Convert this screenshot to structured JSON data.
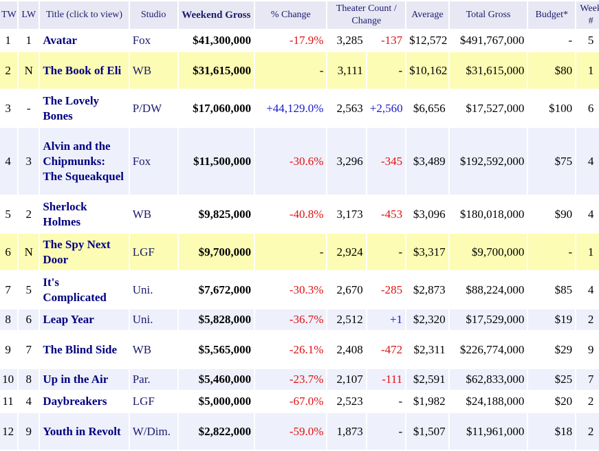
{
  "headers": {
    "tw": "TW",
    "lw": "LW",
    "title": "Title (click to view)",
    "studio": "Studio",
    "weekend": "Weekend Gross",
    "pct": "% Change",
    "theater": "Theater Count / Change",
    "average": "Average",
    "total": "Total Gross",
    "budget": "Budget*",
    "week": "Week #"
  },
  "rows": [
    {
      "tw": "1",
      "lw": "1",
      "title": "Avatar",
      "studio": "Fox",
      "weekend": "$41,300,000",
      "pct": "-17.9%",
      "pct_class": "neg",
      "theaters": "3,285",
      "theater_change": "-137",
      "tc_class": "neg",
      "average": "$12,572",
      "total": "$491,767,000",
      "budget": "-",
      "week": "5",
      "style": "plain"
    },
    {
      "tw": "2",
      "lw": "N",
      "title": "The Book of Eli",
      "studio": "WB",
      "weekend": "$31,615,000",
      "pct": "-",
      "pct_class": "nochg",
      "theaters": "3,111",
      "theater_change": "-",
      "tc_class": "nochg",
      "average": "$10,162",
      "total": "$31,615,000",
      "budget": "$80",
      "week": "1",
      "style": "hi"
    },
    {
      "tw": "3",
      "lw": "-",
      "title": "The Lovely Bones",
      "studio": "P/DW",
      "weekend": "$17,060,000",
      "pct": "+44,129.0%",
      "pct_class": "pos",
      "theaters": "2,563",
      "theater_change": "+2,560",
      "tc_class": "pos",
      "average": "$6,656",
      "total": "$17,527,000",
      "budget": "$100",
      "week": "6",
      "style": "plain"
    },
    {
      "tw": "4",
      "lw": "3",
      "title": "Alvin and the Chipmunks: The Squeakquel",
      "studio": "Fox",
      "weekend": "$11,500,000",
      "pct": "-30.6%",
      "pct_class": "neg",
      "theaters": "3,296",
      "theater_change": "-345",
      "tc_class": "neg",
      "average": "$3,489",
      "total": "$192,592,000",
      "budget": "$75",
      "week": "4",
      "style": "alt"
    },
    {
      "tw": "5",
      "lw": "2",
      "title": "Sherlock Holmes",
      "studio": "WB",
      "weekend": "$9,825,000",
      "pct": "-40.8%",
      "pct_class": "neg",
      "theaters": "3,173",
      "theater_change": "-453",
      "tc_class": "neg",
      "average": "$3,096",
      "total": "$180,018,000",
      "budget": "$90",
      "week": "4",
      "style": "plain"
    },
    {
      "tw": "6",
      "lw": "N",
      "title": "The Spy Next Door",
      "studio": "LGF",
      "weekend": "$9,700,000",
      "pct": "-",
      "pct_class": "nochg",
      "theaters": "2,924",
      "theater_change": "-",
      "tc_class": "nochg",
      "average": "$3,317",
      "total": "$9,700,000",
      "budget": "-",
      "week": "1",
      "style": "hi"
    },
    {
      "tw": "7",
      "lw": "5",
      "title": "It's Complicated",
      "studio": "Uni.",
      "weekend": "$7,672,000",
      "pct": "-30.3%",
      "pct_class": "neg",
      "theaters": "2,670",
      "theater_change": "-285",
      "tc_class": "neg",
      "average": "$2,873",
      "total": "$88,224,000",
      "budget": "$85",
      "week": "4",
      "style": "plain"
    },
    {
      "tw": "8",
      "lw": "6",
      "title": "Leap Year",
      "studio": "Uni.",
      "weekend": "$5,828,000",
      "pct": "-36.7%",
      "pct_class": "neg",
      "theaters": "2,512",
      "theater_change": "+1",
      "tc_class": "pos",
      "average": "$2,320",
      "total": "$17,529,000",
      "budget": "$19",
      "week": "2",
      "style": "alt"
    },
    {
      "tw": "9",
      "lw": "7",
      "title": "The Blind Side",
      "studio": "WB",
      "weekend": "$5,565,000",
      "pct": "-26.1%",
      "pct_class": "neg",
      "theaters": "2,408",
      "theater_change": "-472",
      "tc_class": "neg",
      "average": "$2,311",
      "total": "$226,774,000",
      "budget": "$29",
      "week": "9",
      "style": "plain"
    },
    {
      "tw": "10",
      "lw": "8",
      "title": "Up in the Air",
      "studio": "Par.",
      "weekend": "$5,460,000",
      "pct": "-23.7%",
      "pct_class": "neg",
      "theaters": "2,107",
      "theater_change": "-111",
      "tc_class": "neg",
      "average": "$2,591",
      "total": "$62,833,000",
      "budget": "$25",
      "week": "7",
      "style": "alt"
    },
    {
      "tw": "11",
      "lw": "4",
      "title": "Daybreakers",
      "studio": "LGF",
      "weekend": "$5,000,000",
      "pct": "-67.0%",
      "pct_class": "neg",
      "theaters": "2,523",
      "theater_change": "-",
      "tc_class": "nochg",
      "average": "$1,982",
      "total": "$24,188,000",
      "budget": "$20",
      "week": "2",
      "style": "plain"
    },
    {
      "tw": "12",
      "lw": "9",
      "title": "Youth in Revolt",
      "studio": "W/Dim.",
      "weekend": "$2,822,000",
      "pct": "-59.0%",
      "pct_class": "neg",
      "theaters": "1,873",
      "theater_change": "-",
      "tc_class": "nochg",
      "average": "$1,507",
      "total": "$11,961,000",
      "budget": "$18",
      "week": "2",
      "style": "alt"
    }
  ]
}
